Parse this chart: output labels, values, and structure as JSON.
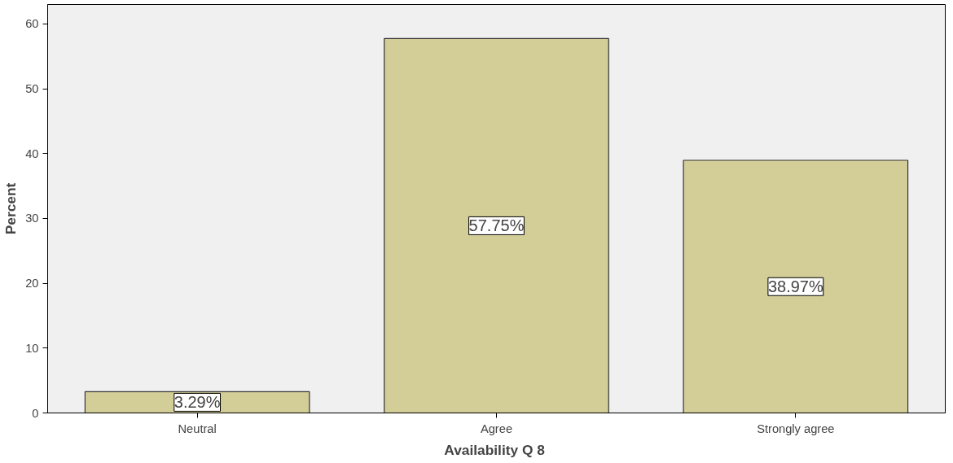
{
  "chart_data": {
    "type": "bar",
    "xlabel": "Availability  Q 8",
    "ylabel": "Percent",
    "categories": [
      "Neutral",
      "Agree",
      "Strongly agree"
    ],
    "values": [
      3.29,
      57.75,
      38.97
    ],
    "value_labels": [
      "3.29%",
      "57.75%",
      "38.97%"
    ],
    "color": "#d3cd98",
    "ylim": [
      0,
      63
    ],
    "yticks": [
      0,
      10,
      20,
      30,
      40,
      50,
      60
    ],
    "grid": false
  }
}
